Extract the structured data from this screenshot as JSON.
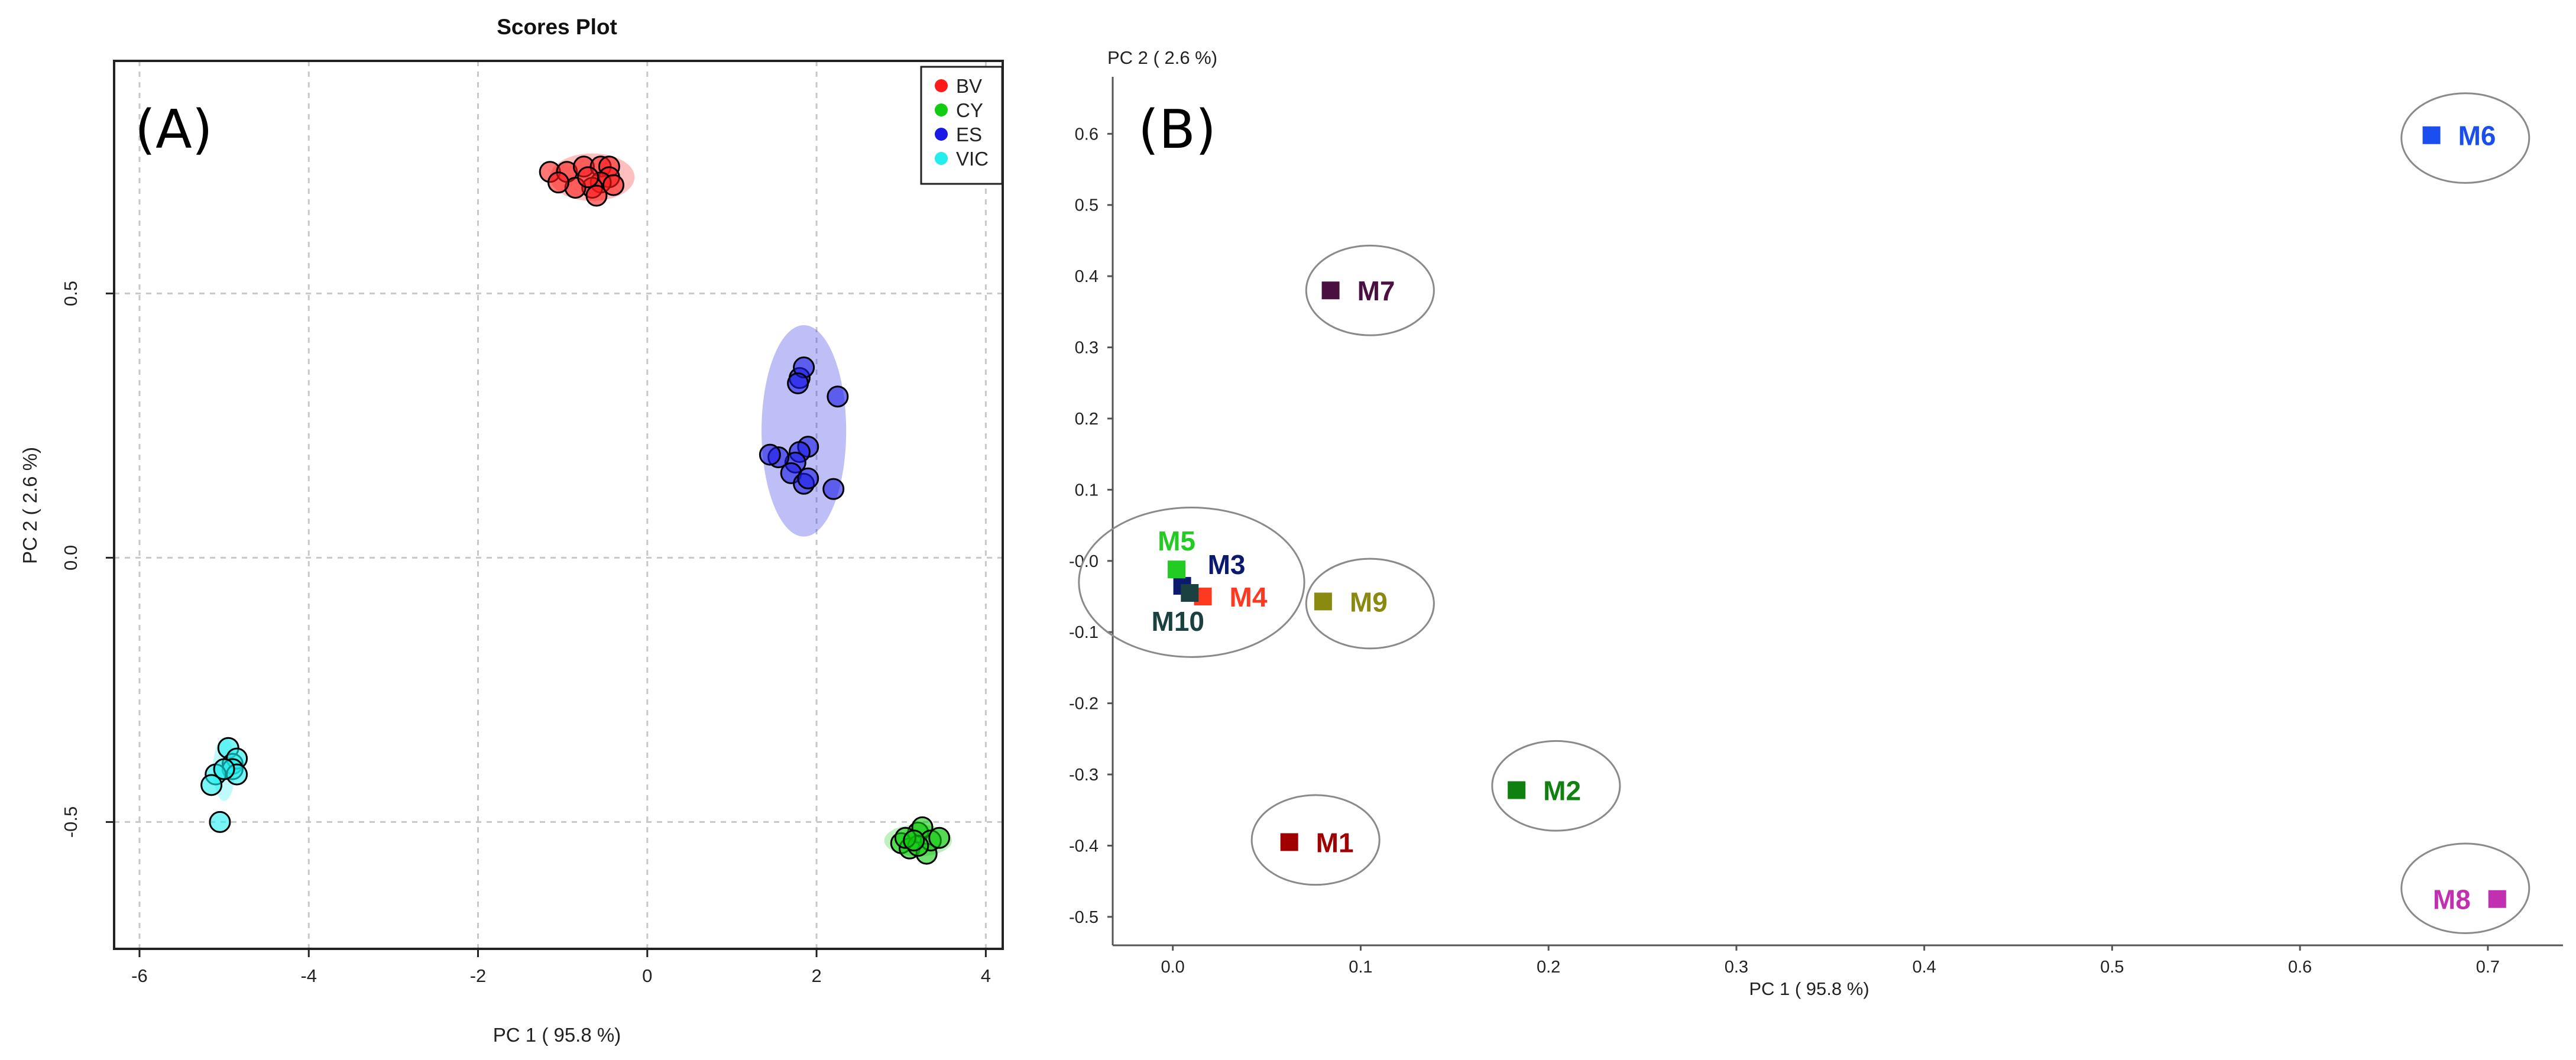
{
  "chart_data": [
    {
      "panel": "(A)",
      "type": "scatter",
      "title": "Scores Plot",
      "xlabel": "PC 1 ( 95.8 %)",
      "ylabel": "PC 2 ( 2.6 %)",
      "xlim": [
        -6.3,
        4.2
      ],
      "ylim": [
        -0.74,
        0.94
      ],
      "xticks": [
        -6,
        -4,
        -2,
        0,
        2,
        4
      ],
      "yticks": [
        -0.5,
        0.0,
        0.5
      ],
      "ytick_labels": [
        "-0.5",
        "0.0",
        "0.5"
      ],
      "grid": true,
      "legend_position": "top-right",
      "series": [
        {
          "name": "BV",
          "color": "#ff1a1a",
          "ellipse": {
            "cx": -0.65,
            "cy": 0.72,
            "rx": 0.5,
            "ry": 0.045
          },
          "points": [
            [
              -1.15,
              0.73
            ],
            [
              -0.95,
              0.73
            ],
            [
              -0.75,
              0.74
            ],
            [
              -0.55,
              0.74
            ],
            [
              -0.45,
              0.74
            ],
            [
              -0.45,
              0.72
            ],
            [
              -0.55,
              0.71
            ],
            [
              -0.65,
              0.7
            ],
            [
              -0.6,
              0.685
            ],
            [
              -0.85,
              0.7
            ],
            [
              -1.05,
              0.71
            ],
            [
              -0.4,
              0.705
            ],
            [
              -0.7,
              0.72
            ]
          ]
        },
        {
          "name": "CY",
          "color": "#11cc11",
          "ellipse": {
            "cx": 3.2,
            "cy": -0.535,
            "rx": 0.4,
            "ry": 0.03
          },
          "points": [
            [
              3.0,
              -0.54
            ],
            [
              3.1,
              -0.55
            ],
            [
              3.2,
              -0.52
            ],
            [
              3.25,
              -0.51
            ],
            [
              3.3,
              -0.56
            ],
            [
              3.35,
              -0.535
            ],
            [
              3.45,
              -0.53
            ],
            [
              3.2,
              -0.545
            ],
            [
              3.05,
              -0.53
            ],
            [
              3.15,
              -0.535
            ]
          ]
        },
        {
          "name": "ES",
          "color": "#1a1ae6",
          "ellipse": {
            "cx": 1.85,
            "cy": 0.24,
            "rx": 0.5,
            "ry": 0.2
          },
          "points": [
            [
              1.8,
              0.34
            ],
            [
              1.85,
              0.36
            ],
            [
              1.78,
              0.33
            ],
            [
              2.25,
              0.305
            ],
            [
              1.9,
              0.21
            ],
            [
              1.8,
              0.2
            ],
            [
              1.75,
              0.18
            ],
            [
              1.55,
              0.19
            ],
            [
              1.45,
              0.195
            ],
            [
              1.7,
              0.16
            ],
            [
              1.85,
              0.14
            ],
            [
              1.9,
              0.15
            ],
            [
              2.2,
              0.13
            ]
          ]
        },
        {
          "name": "VIC",
          "color": "#22eeee",
          "ellipse": {
            "cx": -5.0,
            "cy": -0.4,
            "rx": 0.13,
            "ry": 0.06
          },
          "points": [
            [
              -4.95,
              -0.36
            ],
            [
              -4.9,
              -0.39
            ],
            [
              -4.85,
              -0.38
            ],
            [
              -4.9,
              -0.4
            ],
            [
              -4.85,
              -0.41
            ],
            [
              -5.1,
              -0.41
            ],
            [
              -5.15,
              -0.43
            ],
            [
              -5.0,
              -0.4
            ],
            [
              -5.05,
              -0.5
            ]
          ]
        }
      ]
    },
    {
      "panel": "(B)",
      "type": "scatter",
      "title": "",
      "xlabel": "PC 1 ( 95.8 %)",
      "ylabel": "PC 2 ( 2.6 %)",
      "xlim": [
        -0.032,
        0.74
      ],
      "ylim": [
        -0.54,
        0.68
      ],
      "xticks": [
        0.0,
        0.1,
        0.2,
        0.3,
        0.4,
        0.5,
        0.6,
        0.7
      ],
      "xtick_labels": [
        "0.0",
        "0.1",
        "0.2",
        "0.3",
        "0.4",
        "0.5",
        "0.6",
        "0.7"
      ],
      "yticks": [
        0.6,
        0.5,
        0.4,
        0.3,
        0.2,
        0.1,
        0.0,
        -0.1,
        -0.2,
        -0.3,
        -0.4,
        -0.5
      ],
      "ytick_labels": [
        "0.6",
        "0.5",
        "0.4",
        "0.3",
        "0.2",
        "0.1",
        "-0.0",
        "-0.1",
        "-0.2",
        "-0.3",
        "-0.4",
        "-0.5"
      ],
      "grid": false,
      "points": [
        {
          "label": "M1",
          "x": 0.062,
          "y": -0.395,
          "color": "#a00000",
          "label_side": "right"
        },
        {
          "label": "M2",
          "x": 0.183,
          "y": -0.322,
          "color": "#108010",
          "label_side": "right"
        },
        {
          "label": "M3",
          "x": 0.005,
          "y": -0.035,
          "color": "#0c1a6e",
          "label_side": "upper-right"
        },
        {
          "label": "M4",
          "x": 0.016,
          "y": -0.05,
          "color": "#ff3820",
          "label_side": "right"
        },
        {
          "label": "M5",
          "x": 0.002,
          "y": -0.012,
          "color": "#22cc22",
          "label_side": "above"
        },
        {
          "label": "M6",
          "x": 0.67,
          "y": 0.598,
          "color": "#1a4eee",
          "label_side": "right"
        },
        {
          "label": "M7",
          "x": 0.084,
          "y": 0.38,
          "color": "#4a1040",
          "label_side": "right"
        },
        {
          "label": "M8",
          "x": 0.705,
          "y": -0.475,
          "color": "#c030b0",
          "label_side": "left"
        },
        {
          "label": "M9",
          "x": 0.08,
          "y": -0.057,
          "color": "#8a8a10",
          "label_side": "right"
        },
        {
          "label": "M10",
          "x": 0.009,
          "y": -0.045,
          "color": "#1a4040",
          "label_side": "below-left"
        }
      ],
      "circles": [
        {
          "cx": 0.01,
          "cy": -0.03,
          "rx": 0.06,
          "ry": 0.105
        },
        {
          "cx": 0.105,
          "cy": -0.06,
          "rx": 0.034,
          "ry": 0.063
        },
        {
          "cx": 0.105,
          "cy": 0.38,
          "rx": 0.034,
          "ry": 0.063
        },
        {
          "cx": 0.076,
          "cy": -0.392,
          "rx": 0.034,
          "ry": 0.063
        },
        {
          "cx": 0.204,
          "cy": -0.316,
          "rx": 0.034,
          "ry": 0.063
        },
        {
          "cx": 0.688,
          "cy": 0.594,
          "rx": 0.034,
          "ry": 0.063
        },
        {
          "cx": 0.688,
          "cy": -0.46,
          "rx": 0.034,
          "ry": 0.063
        }
      ]
    }
  ]
}
